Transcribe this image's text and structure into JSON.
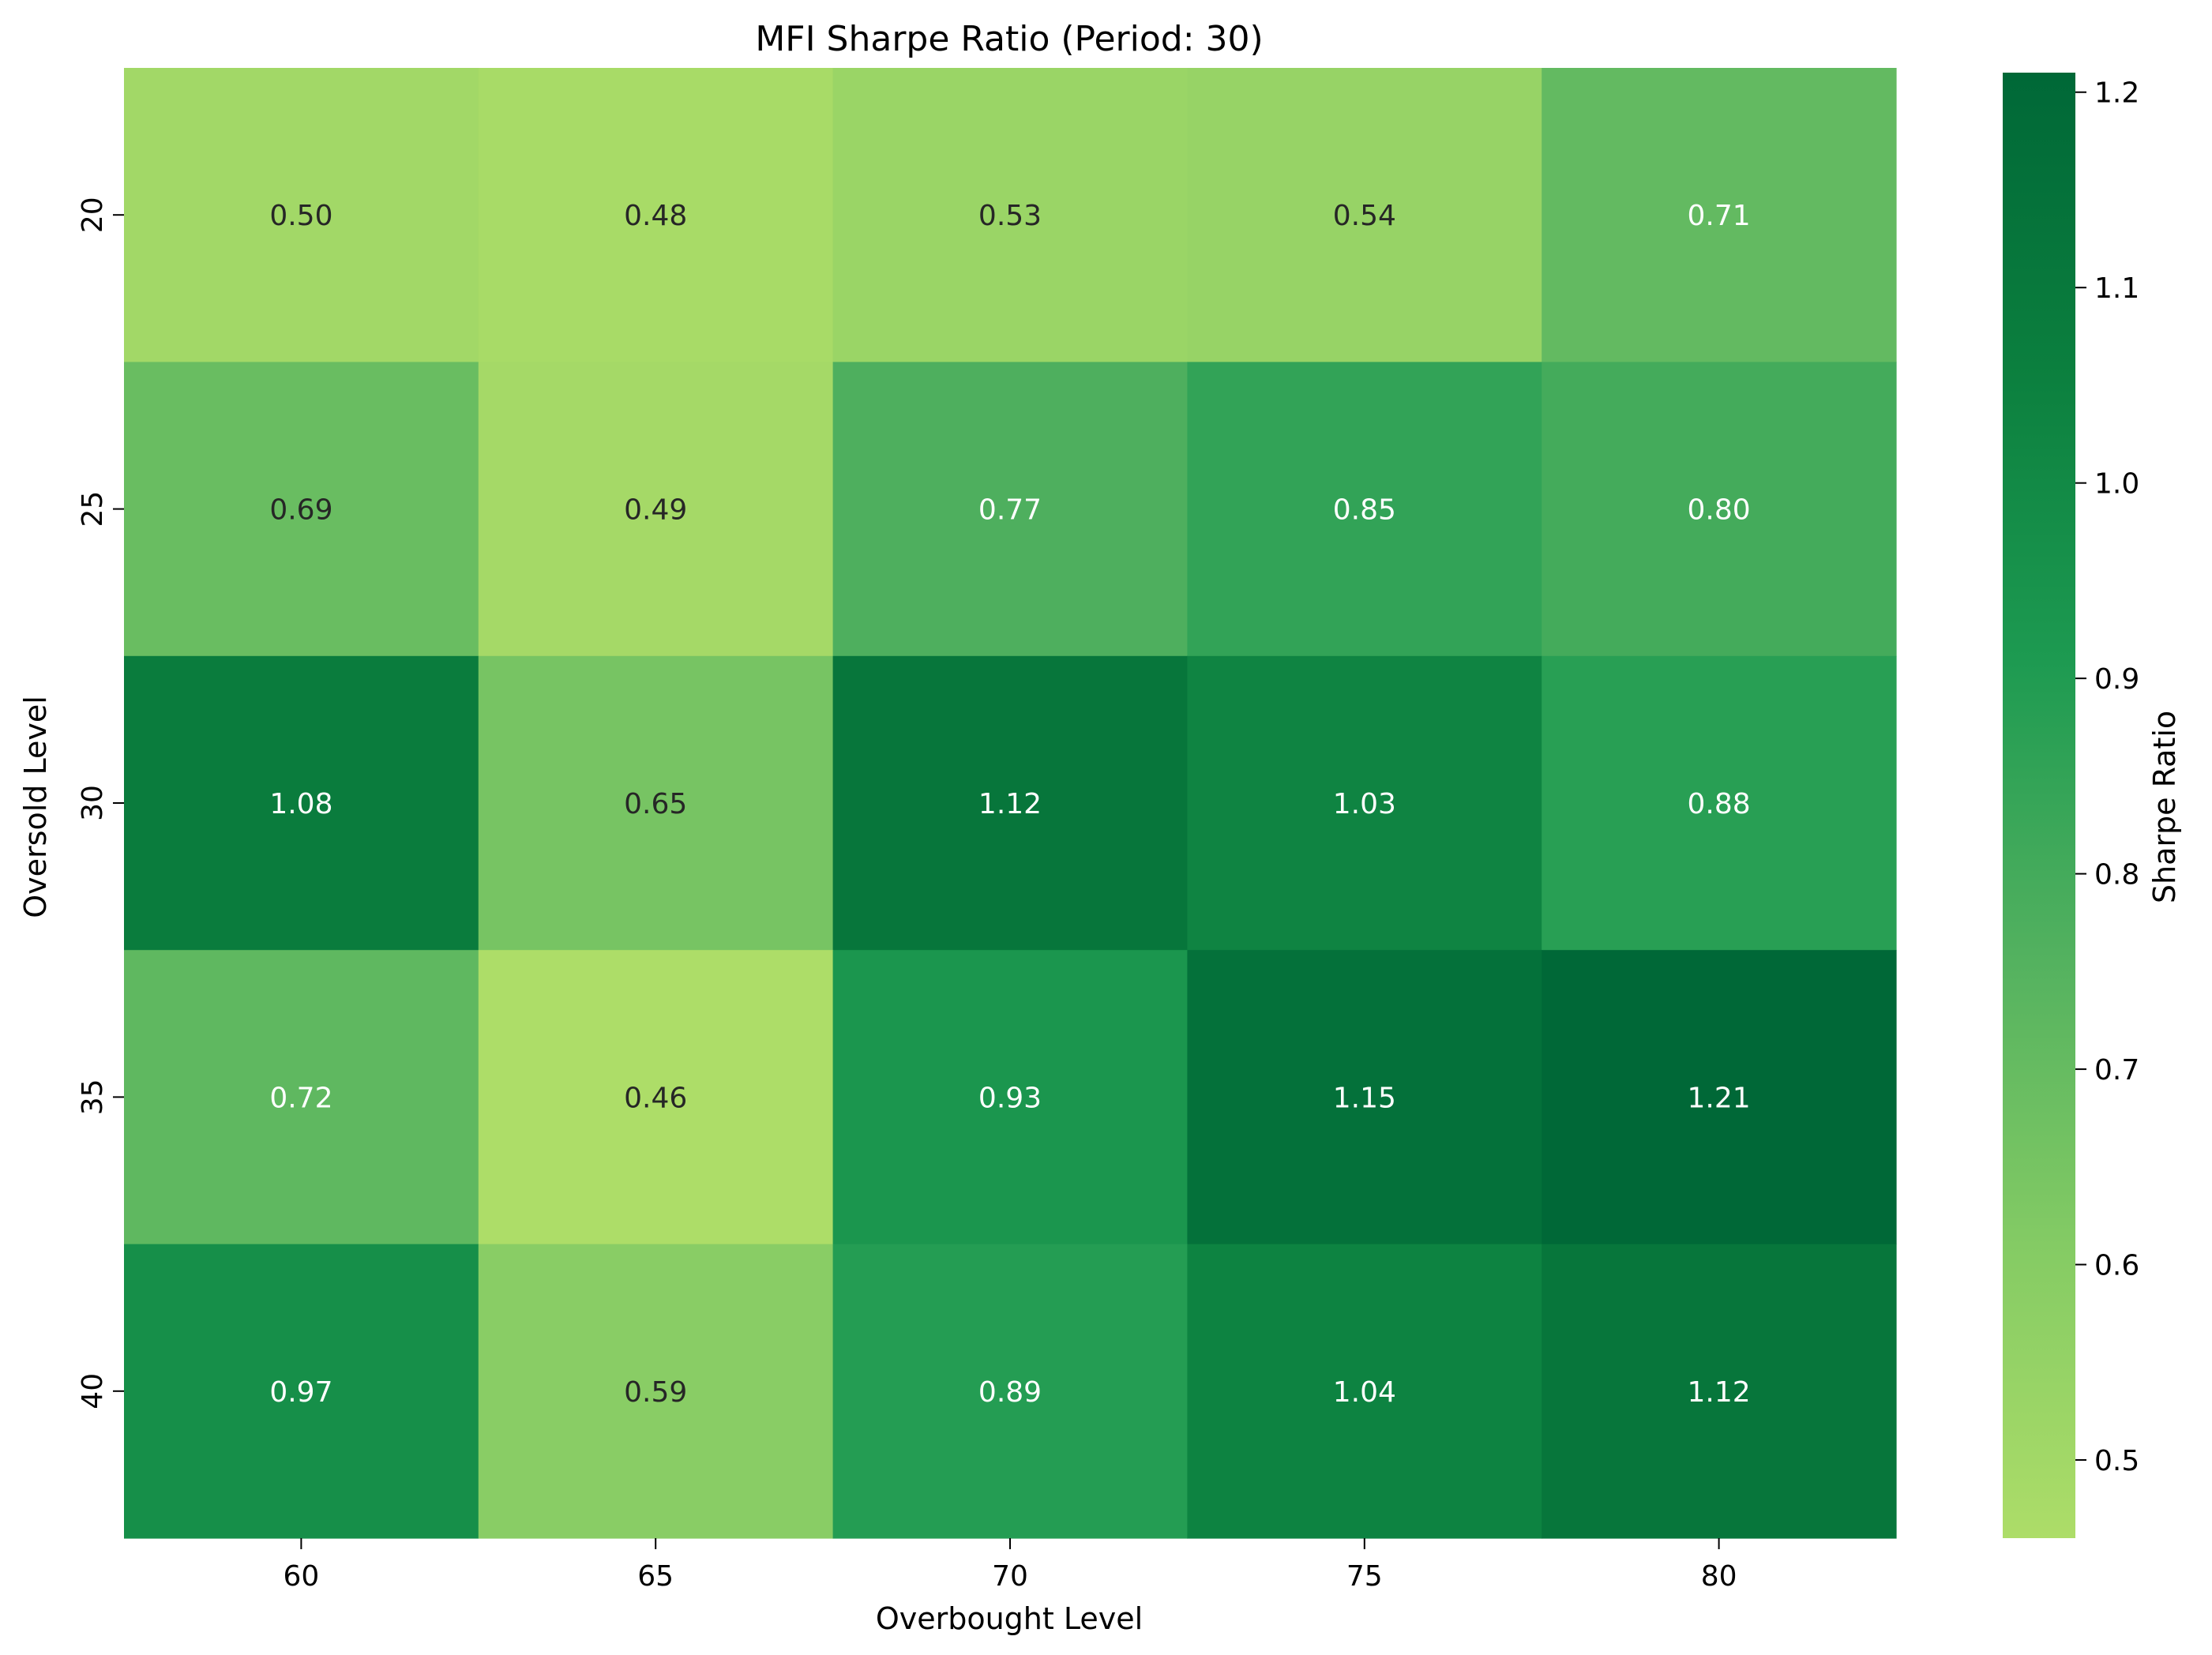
{
  "chart_data": {
    "type": "heatmap",
    "title": "MFI Sharpe Ratio (Period: 30)",
    "xlabel": "Overbought Level",
    "ylabel": "Oversold Level",
    "x_categories": [
      "60",
      "65",
      "70",
      "75",
      "80"
    ],
    "y_categories": [
      "20",
      "25",
      "30",
      "35",
      "40"
    ],
    "values": [
      [
        0.5,
        0.48,
        0.53,
        0.54,
        0.71
      ],
      [
        0.69,
        0.49,
        0.77,
        0.85,
        0.8
      ],
      [
        1.08,
        0.65,
        1.12,
        1.03,
        0.88
      ],
      [
        0.72,
        0.46,
        0.93,
        1.15,
        1.21
      ],
      [
        0.97,
        0.59,
        0.89,
        1.04,
        1.12
      ]
    ],
    "value_format": "0.00",
    "colorbar": {
      "label": "Sharpe Ratio",
      "range": [
        0.46,
        1.21
      ],
      "ticks": [
        "0.5",
        "0.6",
        "0.7",
        "0.8",
        "0.9",
        "1.0",
        "1.1",
        "1.2"
      ],
      "colors": [
        "#addd68",
        "#84cb64",
        "#52b15f",
        "#1d9a51",
        "#0b7f3e",
        "#006837"
      ]
    },
    "grid": false
  }
}
